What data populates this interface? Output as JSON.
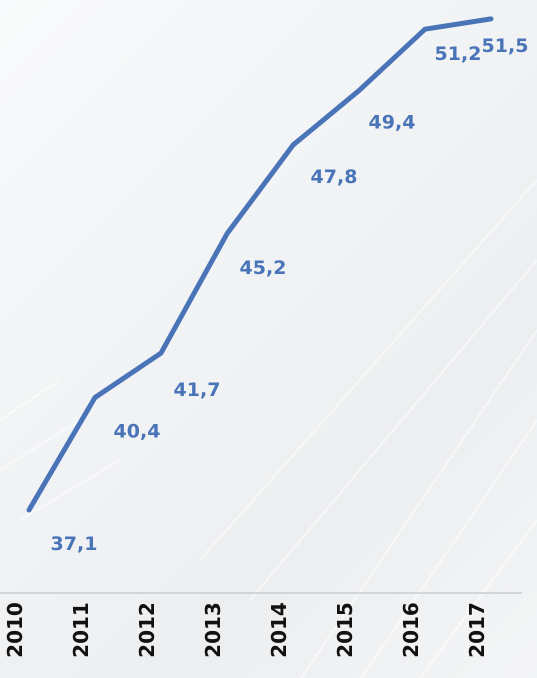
{
  "chart_data": {
    "type": "line",
    "categories": [
      "2010",
      "2011",
      "2012",
      "2013",
      "2014",
      "2015",
      "2016",
      "2017"
    ],
    "series": [
      {
        "values": [
          37.1,
          40.4,
          41.7,
          45.2,
          47.8,
          49.4,
          51.2,
          51.5
        ],
        "labels": [
          "37,1",
          "40,4",
          "41,7",
          "45,2",
          "47,8",
          "49,4",
          "51,2",
          "51,5"
        ],
        "color": "#4a74b8"
      }
    ],
    "title": "",
    "xlabel": "",
    "ylabel": "",
    "ylim": [
      36,
      52
    ],
    "grid": false,
    "legend": "none",
    "axis_color": "#c8ccd2",
    "tick_label_color": "#111111",
    "label_color": "#4a74b8"
  }
}
